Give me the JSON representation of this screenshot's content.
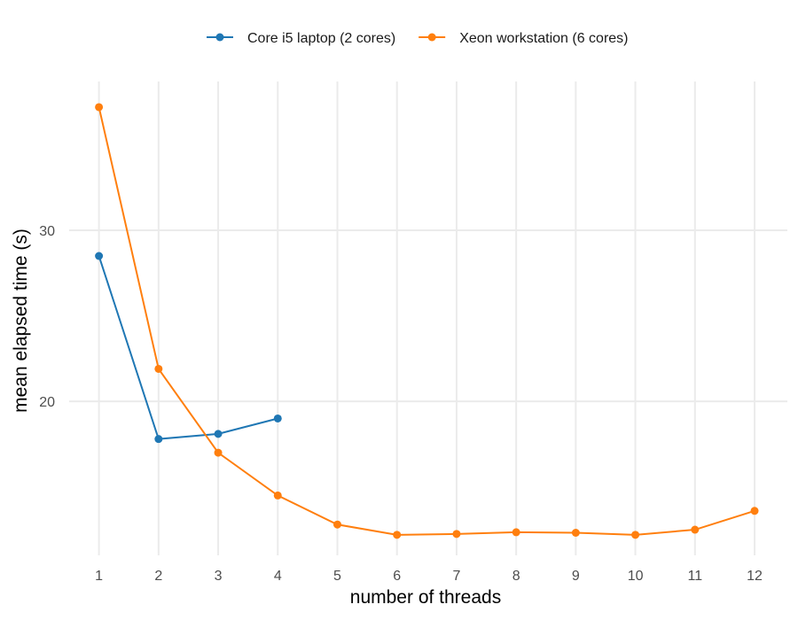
{
  "chart_data": {
    "type": "line",
    "xlabel": "number of threads",
    "ylabel": "mean elapsed time (s)",
    "x_ticks": [
      1,
      2,
      3,
      4,
      5,
      6,
      7,
      8,
      9,
      10,
      11,
      12
    ],
    "y_ticks": [
      20,
      30
    ],
    "xlim": [
      0.5,
      12.55
    ],
    "ylim": [
      11.0,
      38.7
    ],
    "grid": true,
    "legend_position": "top",
    "series": [
      {
        "name": "Core i5 laptop (2 cores)",
        "color": "#1f77b4",
        "x": [
          1,
          2,
          3,
          4
        ],
        "y": [
          28.5,
          17.8,
          18.1,
          19.0
        ]
      },
      {
        "name": "Xeon workstation (6 cores)",
        "color": "#ff7f0e",
        "x": [
          1,
          2,
          3,
          4,
          5,
          6,
          7,
          8,
          9,
          10,
          11,
          12
        ],
        "y": [
          37.2,
          21.9,
          17.0,
          14.5,
          12.8,
          12.2,
          12.25,
          12.35,
          12.32,
          12.2,
          12.5,
          13.6
        ]
      }
    ]
  }
}
